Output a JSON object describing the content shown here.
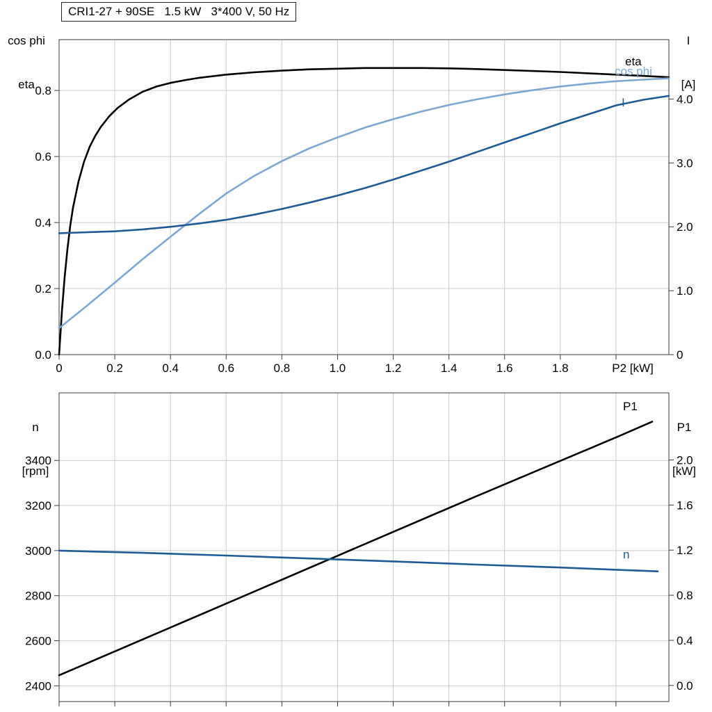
{
  "header": {
    "title_box": "CRI1-27 + 90SE   1.5 kW   3*400 V, 50 Hz"
  },
  "colors": {
    "black": "#000000",
    "dark_blue": "#1d5a96",
    "light_blue": "#7aa7d1",
    "grid": "#cccccc",
    "frame": "#3a3a3a"
  },
  "chart_data": [
    {
      "type": "line",
      "title": "CRI1-27 + 90SE   1.5 kW   3*400 V, 50 Hz",
      "xlabel": "P2 [kW]",
      "xlim": [
        0,
        2.19
      ],
      "grid": true,
      "x_ticks": {
        "values": [
          0,
          0.2,
          0.4,
          0.6,
          0.8,
          1.0,
          1.2,
          1.4,
          1.6,
          1.8,
          2.0
        ],
        "labels": [
          "0",
          "0.2",
          "0.4",
          "0.6",
          "0.8",
          "1.0",
          "1.2",
          "1.4",
          "1.6",
          "1.8",
          ""
        ]
      },
      "left_axis": {
        "header_lines": [
          "cos phi",
          "eta"
        ],
        "lim": [
          0,
          0.954
        ],
        "ticks": {
          "values": [
            0,
            0.2,
            0.4,
            0.6,
            0.8
          ],
          "labels": [
            "0.0",
            "0.2",
            "0.4",
            "0.6",
            "0.8"
          ]
        }
      },
      "right_axis": {
        "header_lines": [
          "I",
          "[A]"
        ],
        "lim": [
          0,
          4.93
        ],
        "ticks": {
          "values": [
            0,
            1,
            2,
            3,
            4
          ],
          "labels": [
            "0",
            "1.0",
            "2.0",
            "3.0",
            "4.0"
          ]
        }
      },
      "series": [
        {
          "name": "eta",
          "axis": "left",
          "color": "#000000",
          "points": [
            [
              0,
              0
            ],
            [
              0.01,
              0.13
            ],
            [
              0.02,
              0.235
            ],
            [
              0.03,
              0.32
            ],
            [
              0.04,
              0.39
            ],
            [
              0.05,
              0.445
            ],
            [
              0.07,
              0.525
            ],
            [
              0.09,
              0.585
            ],
            [
              0.11,
              0.63
            ],
            [
              0.13,
              0.663
            ],
            [
              0.15,
              0.69
            ],
            [
              0.18,
              0.722
            ],
            [
              0.21,
              0.747
            ],
            [
              0.25,
              0.772
            ],
            [
              0.3,
              0.796
            ],
            [
              0.35,
              0.812
            ],
            [
              0.4,
              0.823
            ],
            [
              0.45,
              0.831
            ],
            [
              0.5,
              0.838
            ],
            [
              0.6,
              0.848
            ],
            [
              0.7,
              0.855
            ],
            [
              0.8,
              0.86
            ],
            [
              0.9,
              0.864
            ],
            [
              1,
              0.866
            ],
            [
              1.1,
              0.868
            ],
            [
              1.2,
              0.868
            ],
            [
              1.3,
              0.868
            ],
            [
              1.4,
              0.867
            ],
            [
              1.5,
              0.865
            ],
            [
              1.6,
              0.862
            ],
            [
              1.7,
              0.859
            ],
            [
              1.8,
              0.856
            ],
            [
              1.9,
              0.852
            ],
            [
              2,
              0.848
            ],
            [
              2.1,
              0.844
            ],
            [
              2.19,
              0.84
            ]
          ]
        },
        {
          "name": "cos phi",
          "axis": "left",
          "color": "#7aa7d1",
          "points": [
            [
              0,
              0.08
            ],
            [
              0.1,
              0.148
            ],
            [
              0.2,
              0.218
            ],
            [
              0.3,
              0.289
            ],
            [
              0.4,
              0.357
            ],
            [
              0.5,
              0.424
            ],
            [
              0.6,
              0.488
            ],
            [
              0.7,
              0.541
            ],
            [
              0.8,
              0.586
            ],
            [
              0.9,
              0.625
            ],
            [
              1,
              0.658
            ],
            [
              1.1,
              0.688
            ],
            [
              1.2,
              0.713
            ],
            [
              1.3,
              0.736
            ],
            [
              1.4,
              0.756
            ],
            [
              1.5,
              0.773
            ],
            [
              1.6,
              0.788
            ],
            [
              1.7,
              0.801
            ],
            [
              1.8,
              0.812
            ],
            [
              1.9,
              0.821
            ],
            [
              2,
              0.828
            ],
            [
              2.1,
              0.833
            ],
            [
              2.19,
              0.837
            ]
          ]
        },
        {
          "name": "I",
          "axis": "right",
          "color": "#1d5a96",
          "points": [
            [
              0,
              1.9
            ],
            [
              0.2,
              1.93
            ],
            [
              0.3,
              1.96
            ],
            [
              0.4,
              2
            ],
            [
              0.5,
              2.05
            ],
            [
              0.6,
              2.11
            ],
            [
              0.7,
              2.19
            ],
            [
              0.8,
              2.28
            ],
            [
              0.9,
              2.38
            ],
            [
              1,
              2.49
            ],
            [
              1.1,
              2.61
            ],
            [
              1.2,
              2.74
            ],
            [
              1.3,
              2.88
            ],
            [
              1.4,
              3.02
            ],
            [
              1.5,
              3.17
            ],
            [
              1.6,
              3.32
            ],
            [
              1.7,
              3.47
            ],
            [
              1.8,
              3.62
            ],
            [
              1.9,
              3.76
            ],
            [
              2,
              3.9
            ],
            [
              2.1,
              3.99
            ],
            [
              2.19,
              4.05
            ]
          ]
        }
      ]
    },
    {
      "type": "line",
      "title": "",
      "xlabel": "",
      "xlim": [
        0,
        2.19
      ],
      "grid": true,
      "x_ticks": {
        "values": [
          0,
          0.2,
          0.4,
          0.6,
          0.8,
          1.0,
          1.2,
          1.4,
          1.6,
          1.8,
          2.0
        ],
        "labels": [
          "",
          "",
          "",
          "",
          "",
          "",
          "",
          "",
          "",
          "",
          ""
        ]
      },
      "left_axis": {
        "header_lines": [
          "n",
          "[rpm]"
        ],
        "lim": [
          2330,
          3700
        ],
        "ticks": {
          "values": [
            2400,
            2600,
            2800,
            3000,
            3200,
            3400
          ],
          "labels": [
            "2400",
            "2600",
            "2800",
            "3000",
            "3200",
            "3400"
          ]
        }
      },
      "right_axis": {
        "header_lines": [
          "P1",
          "[kW]"
        ],
        "lim": [
          -0.143,
          2.595
        ],
        "ticks": {
          "values": [
            0,
            0.4,
            0.8,
            1.2,
            1.6,
            2.0
          ],
          "labels": [
            "0.0",
            "0.4",
            "0.8",
            "1.2",
            "1.6",
            "2.0"
          ]
        }
      },
      "series": [
        {
          "name": "P1",
          "axis": "right",
          "color": "#000000",
          "points": [
            [
              0,
              0.09
            ],
            [
              0.5,
              0.62
            ],
            [
              1,
              1.15
            ],
            [
              1.5,
              1.68
            ],
            [
              2,
              2.2
            ],
            [
              2.13,
              2.34
            ]
          ]
        },
        {
          "name": "n",
          "axis": "left",
          "color": "#1d5a96",
          "points": [
            [
              0,
              3000
            ],
            [
              0.3,
              2990
            ],
            [
              0.6,
              2978
            ],
            [
              0.9,
              2965
            ],
            [
              1.2,
              2952
            ],
            [
              1.5,
              2938
            ],
            [
              1.8,
              2925
            ],
            [
              2,
              2915
            ],
            [
              2.15,
              2908
            ]
          ]
        }
      ]
    }
  ]
}
